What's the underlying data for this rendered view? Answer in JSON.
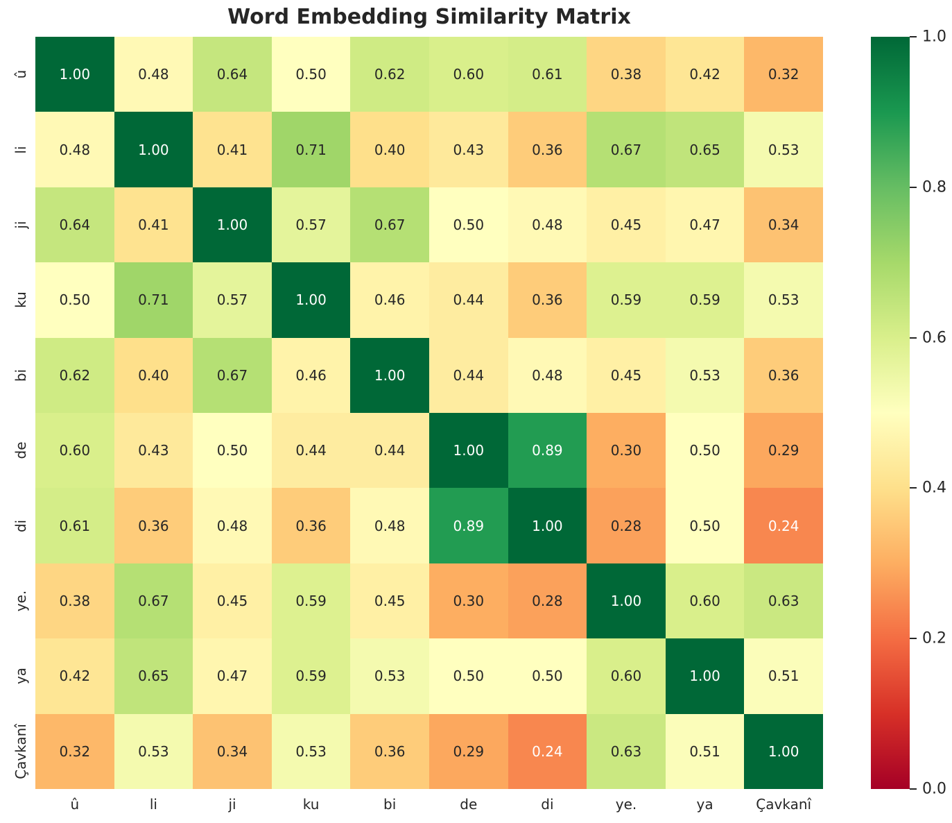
{
  "title": "Word Embedding Similarity Matrix",
  "chart_data": {
    "type": "heatmap",
    "x_labels": [
      "û",
      "li",
      "ji",
      "ku",
      "bi",
      "de",
      "di",
      "ye.",
      "ya",
      "Çavkanî"
    ],
    "y_labels": [
      "û",
      "li",
      "ji",
      "ku",
      "bi",
      "de",
      "di",
      "ye.",
      "ya",
      "Çavkanî"
    ],
    "matrix": [
      [
        1.0,
        0.48,
        0.64,
        0.5,
        0.62,
        0.6,
        0.61,
        0.38,
        0.42,
        0.32
      ],
      [
        0.48,
        1.0,
        0.41,
        0.71,
        0.4,
        0.43,
        0.36,
        0.67,
        0.65,
        0.53
      ],
      [
        0.64,
        0.41,
        1.0,
        0.57,
        0.67,
        0.5,
        0.48,
        0.45,
        0.47,
        0.34
      ],
      [
        0.5,
        0.71,
        0.57,
        1.0,
        0.46,
        0.44,
        0.36,
        0.59,
        0.59,
        0.53
      ],
      [
        0.62,
        0.4,
        0.67,
        0.46,
        1.0,
        0.44,
        0.48,
        0.45,
        0.53,
        0.36
      ],
      [
        0.6,
        0.43,
        0.5,
        0.44,
        0.44,
        1.0,
        0.89,
        0.3,
        0.5,
        0.29
      ],
      [
        0.61,
        0.36,
        0.48,
        0.36,
        0.48,
        0.89,
        1.0,
        0.28,
        0.5,
        0.24
      ],
      [
        0.38,
        0.67,
        0.45,
        0.59,
        0.45,
        0.3,
        0.28,
        1.0,
        0.6,
        0.63
      ],
      [
        0.42,
        0.65,
        0.47,
        0.59,
        0.53,
        0.5,
        0.5,
        0.6,
        1.0,
        0.51
      ],
      [
        0.32,
        0.53,
        0.34,
        0.53,
        0.36,
        0.29,
        0.24,
        0.63,
        0.51,
        1.0
      ]
    ],
    "title": "Word Embedding Similarity Matrix",
    "annotation_format": "0.00",
    "colormap": "RdYlGn",
    "vmin": 0.0,
    "vmax": 1.0,
    "legend_position": "right-colorbar",
    "grid": false,
    "colorbar_ticks": [
      "1.0",
      "0.8",
      "0.6",
      "0.4",
      "0.2",
      "0.0"
    ]
  },
  "colors": {
    "rdylgn_stops": [
      "#a50026",
      "#d73027",
      "#f46d43",
      "#fdae61",
      "#fee08b",
      "#ffffbf",
      "#d9ef8b",
      "#a6d96a",
      "#66bd63",
      "#1a9850",
      "#006837"
    ],
    "annotation_dark": "#262626",
    "annotation_light": "#ffffff",
    "title_color": "#262626",
    "tick_label_color": "#262626"
  }
}
